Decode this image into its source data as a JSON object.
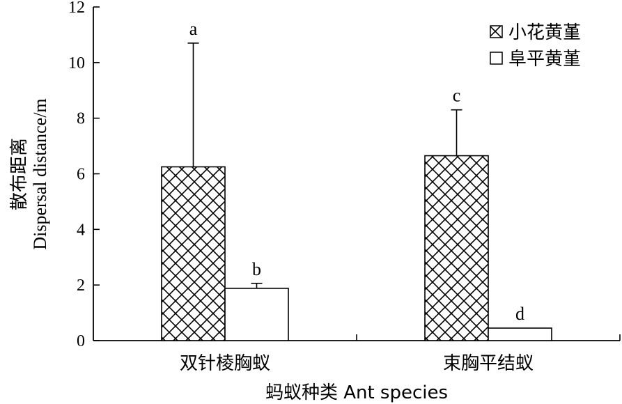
{
  "chart_data": {
    "type": "bar",
    "xlabel": "蚂蚁种类 Ant species",
    "ylabel_cn": "散布距离",
    "ylabel_en": "Dispersal distance/m",
    "ylim": [
      0,
      12
    ],
    "yticks": [
      "0",
      "2",
      "4",
      "6",
      "8",
      "10",
      "12"
    ],
    "categories": [
      "双针棱胸蚁",
      "束胸平结蚁"
    ],
    "series": [
      {
        "name": "小花黄堇",
        "pattern": "crosshatch",
        "values": [
          6.25,
          6.65
        ],
        "errors": [
          4.45,
          1.65
        ],
        "labels": [
          "a",
          "c"
        ]
      },
      {
        "name": "阜平黄堇",
        "pattern": "open",
        "values": [
          1.88,
          0.45
        ],
        "errors": [
          0.18,
          0.0
        ],
        "labels": [
          "b",
          "d"
        ]
      }
    ],
    "legend_position": "top-right",
    "grid": false,
    "colors": {
      "axis": "#000000",
      "bar_fill": "#ffffff",
      "hatch": "#000000"
    }
  }
}
